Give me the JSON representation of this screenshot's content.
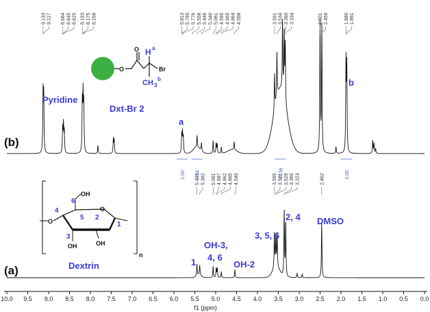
{
  "chart_data": {
    "type": "line",
    "xlabel": "f1 (ppm)",
    "xlim": [
      10.0,
      0.0
    ],
    "x_reversed": true,
    "x_ticks": [
      "10.0",
      "9.5",
      "9.0",
      "8.5",
      "8.0",
      "7.5",
      "7.0",
      "6.5",
      "6.0",
      "5.5",
      "5.0",
      "4.5",
      "4.0",
      "3.5",
      "3.0",
      "2.5",
      "2.0",
      "1.5",
      "1.0",
      "0.5",
      "0.0"
    ],
    "spectra": [
      {
        "panel": "(b)",
        "peak_labels_ppm": [
          "9.133",
          "9.117",
          "8.664",
          "8.645",
          "8.625",
          "8.193",
          "8.175",
          "8.158",
          "5.813",
          "5.795",
          "5.776",
          "5.558",
          "5.446",
          "5.340",
          "5.061",
          "4.990",
          "4.965",
          "4.864",
          "4.558",
          "3.591",
          "3.534",
          "3.360",
          "3.334",
          "2.501",
          "2.459",
          "1.880",
          "1.861"
        ],
        "integrals": [
          {
            "value": "1.00",
            "ppm": 5.8
          },
          {
            "value": "2.54",
            "ppm": 5.45
          },
          {
            "value": "47.36",
            "ppm": 3.45
          },
          {
            "value": "3.00",
            "ppm": 1.87
          }
        ],
        "annotations": [
          {
            "text": "Pyridine",
            "ppm": 9.2
          },
          {
            "text": "Dxt-Br 2",
            "ppm": 7.3
          },
          {
            "text": "a",
            "ppm": 5.8
          },
          {
            "text": "b",
            "ppm": 1.7
          }
        ],
        "peaks": [
          {
            "ppm": 9.133,
            "h": 0.72
          },
          {
            "ppm": 9.117,
            "h": 0.68
          },
          {
            "ppm": 8.664,
            "h": 0.3
          },
          {
            "ppm": 8.645,
            "h": 0.34
          },
          {
            "ppm": 8.625,
            "h": 0.26
          },
          {
            "ppm": 8.193,
            "h": 0.6
          },
          {
            "ppm": 8.175,
            "h": 0.66
          },
          {
            "ppm": 8.158,
            "h": 0.56
          },
          {
            "ppm": 7.82,
            "h": 0.1
          },
          {
            "ppm": 7.45,
            "h": 0.18
          },
          {
            "ppm": 7.43,
            "h": 0.16
          },
          {
            "ppm": 5.813,
            "h": 0.22
          },
          {
            "ppm": 5.795,
            "h": 0.24
          },
          {
            "ppm": 5.776,
            "h": 0.2
          },
          {
            "ppm": 5.446,
            "h": 0.14
          },
          {
            "ppm": 5.34,
            "h": 0.1
          },
          {
            "ppm": 5.061,
            "h": 0.16
          },
          {
            "ppm": 4.99,
            "h": 0.12
          },
          {
            "ppm": 4.965,
            "h": 0.12
          },
          {
            "ppm": 4.864,
            "h": 0.08
          },
          {
            "ppm": 4.558,
            "h": 0.1
          },
          {
            "ppm": 3.591,
            "h": 0.45
          },
          {
            "ppm": 3.534,
            "h": 0.55
          },
          {
            "ppm": 3.4,
            "h": 0.85
          },
          {
            "ppm": 3.36,
            "h": 0.8
          },
          {
            "ppm": 3.334,
            "h": 0.72
          },
          {
            "ppm": 2.501,
            "h": 1.6
          },
          {
            "ppm": 2.459,
            "h": 1.55
          },
          {
            "ppm": 2.12,
            "h": 0.08
          },
          {
            "ppm": 1.88,
            "h": 1.08
          },
          {
            "ppm": 1.861,
            "h": 1.02
          },
          {
            "ppm": 1.24,
            "h": 0.16
          },
          {
            "ppm": 1.21,
            "h": 0.12
          },
          {
            "ppm": 1.17,
            "h": 0.06
          }
        ]
      },
      {
        "panel": "(a)",
        "peak_labels_ppm": [
          "5.449",
          "5.382",
          "5.061",
          "4.987",
          "4.962",
          "4.865",
          "4.540",
          "3.595",
          "3.561",
          "3.529",
          "3.360",
          "3.323",
          "2.462"
        ],
        "annotations": [
          {
            "text": "1",
            "ppm": 5.5
          },
          {
            "text": "OH-3,",
            "ppm": 5.0
          },
          {
            "text": "4, 6",
            "ppm": 5.0
          },
          {
            "text": "OH-2",
            "ppm": 4.4
          },
          {
            "text": "3, 5, 6",
            "ppm": 3.7
          },
          {
            "text": "2, 4",
            "ppm": 3.0
          },
          {
            "text": "DMSO",
            "ppm": 2.4
          }
        ],
        "peaks": [
          {
            "ppm": 5.449,
            "h": 0.2
          },
          {
            "ppm": 5.382,
            "h": 0.17
          },
          {
            "ppm": 5.061,
            "h": 0.2
          },
          {
            "ppm": 4.987,
            "h": 0.16
          },
          {
            "ppm": 4.962,
            "h": 0.16
          },
          {
            "ppm": 4.865,
            "h": 0.1
          },
          {
            "ppm": 4.54,
            "h": 0.14
          },
          {
            "ppm": 3.595,
            "h": 0.6
          },
          {
            "ppm": 3.561,
            "h": 0.52
          },
          {
            "ppm": 3.529,
            "h": 0.55
          },
          {
            "ppm": 3.36,
            "h": 1.15
          },
          {
            "ppm": 3.323,
            "h": 0.95
          },
          {
            "ppm": 2.462,
            "h": 0.95
          },
          {
            "ppm": 3.05,
            "h": 0.08
          },
          {
            "ppm": 2.93,
            "h": 0.06
          }
        ]
      }
    ]
  },
  "labels": {
    "panel_b": "(b)",
    "panel_a": "(a)",
    "pyridine": "Pyridine",
    "dxt_br": "Dxt-Br 2",
    "a": "a",
    "b": "b",
    "h1": "1",
    "oh34_1": "OH-3,",
    "oh34_2": "4, 6",
    "oh2": "OH-2",
    "h356": "3, 5, 6",
    "h24": "2, 4",
    "dmso": "DMSO",
    "dextrin": "Dextrin",
    "xlabel": "f1 (ppm)"
  },
  "structure_b": {
    "o1": "O",
    "o2": "O",
    "ha": "H",
    "ha_sup": "a",
    "br": "Br",
    "ch3": "CH",
    "ch3_sub": "3",
    "ch3_sup": "b"
  },
  "structure_a": {
    "n": "n",
    "o_ring": "O",
    "oh_6": "OH",
    "oh_3": "OH",
    "oh_2": "OH",
    "o_link": "O",
    "pos": [
      "1",
      "2",
      "3",
      "4",
      "5",
      "6"
    ]
  },
  "colors": {
    "accent": "#3a3ad8",
    "bead": "#3cb043",
    "spectrum": "#111111"
  }
}
